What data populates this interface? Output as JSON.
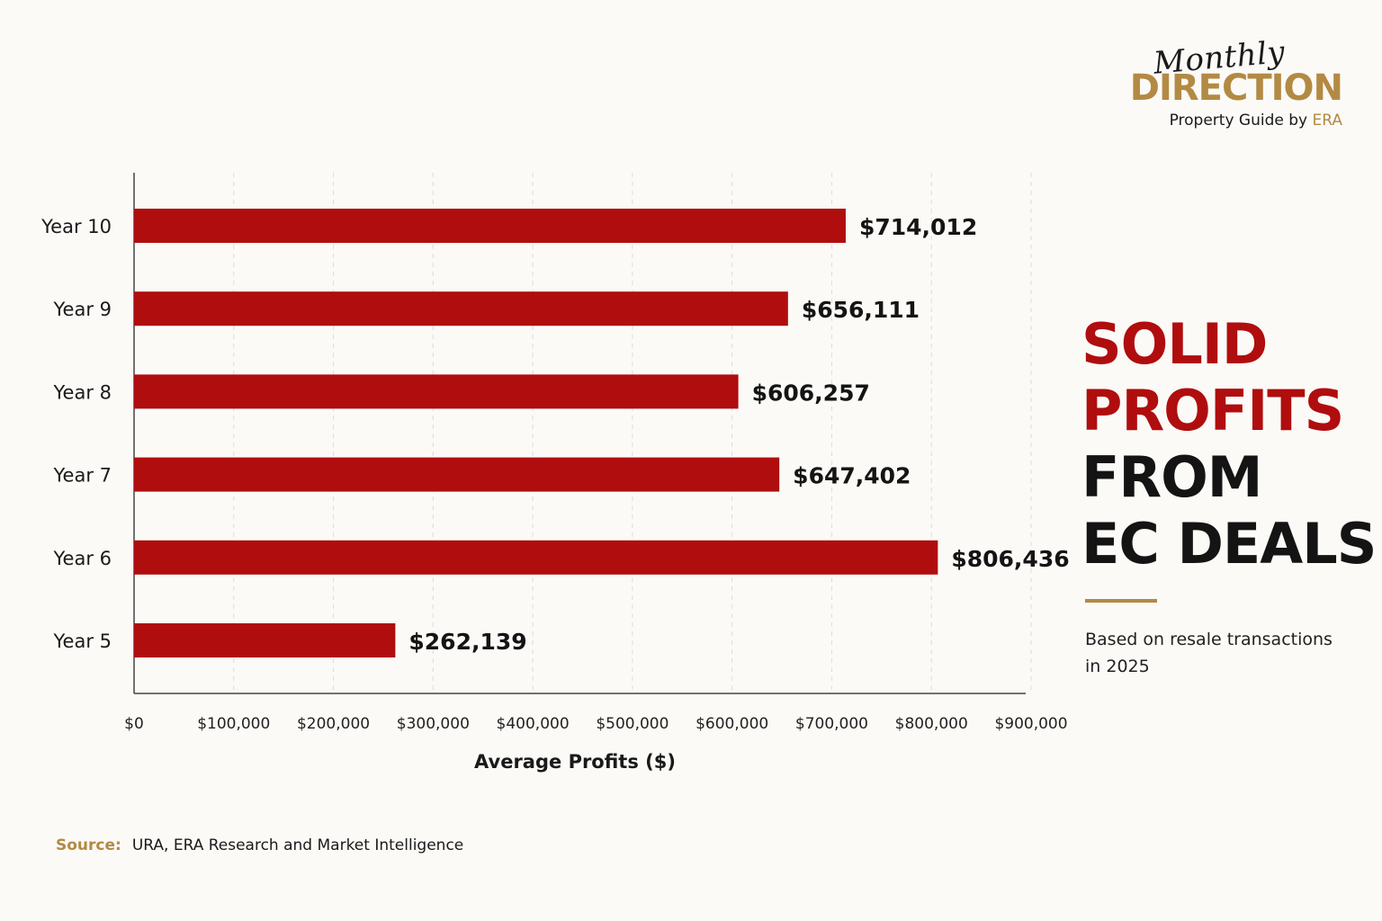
{
  "logo": {
    "script_text": "Monthly",
    "brand": "DIRECTION",
    "tagline_prefix": "Property Guide by ",
    "tagline_brand": "ERA"
  },
  "headline": {
    "line1": "SOLID",
    "line2": "PROFITS",
    "line3": "FROM",
    "line4": "EC DEALS"
  },
  "subtitle": "Based on resale transactions in 2025",
  "source": {
    "label": "Source:",
    "text": "URA, ERA Research and Market Intelligence"
  },
  "colors": {
    "bar": "#b00d0e",
    "accent_gold": "#b38a43",
    "text_dark": "#141414",
    "background": "#fbfaf7"
  },
  "chart_data": {
    "type": "bar",
    "orientation": "horizontal",
    "categories": [
      "Year 10",
      "Year 9",
      "Year 8",
      "Year 7",
      "Year 6",
      "Year 5"
    ],
    "values": [
      714012,
      656111,
      606257,
      647402,
      806436,
      262139
    ],
    "data_labels": [
      "$714,012",
      "$656,111",
      "$606,257",
      "$647,402",
      "$806,436",
      "$262,139"
    ],
    "xlabel": "Average Profits ($)",
    "ylabel": "",
    "xlim": [
      0,
      900000
    ],
    "x_ticks": [
      0,
      100000,
      200000,
      300000,
      400000,
      500000,
      600000,
      700000,
      800000,
      900000
    ],
    "x_tick_labels": [
      "$0",
      "$100,000",
      "$200,000",
      "$300,000",
      "$400,000",
      "$500,000",
      "$600,000",
      "$700,000",
      "$800,000",
      "$900,000"
    ],
    "grid": "vertical dashed",
    "legend": "none"
  }
}
